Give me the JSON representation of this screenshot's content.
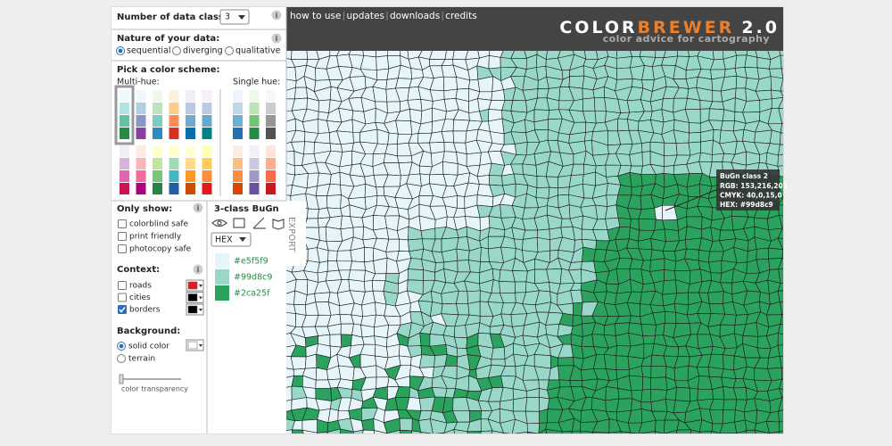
{
  "info_icon": "i",
  "panel": {
    "classes": {
      "label": "Number of data classes:",
      "value": "3"
    },
    "nature": {
      "label": "Nature of your data:",
      "options": [
        "sequential",
        "diverging",
        "qualitative"
      ],
      "selected": 0
    },
    "scheme": {
      "label": "Pick a color scheme:",
      "multi": "Multi-hue:",
      "single": "Single hue:",
      "multi_ramps": [
        [
          "#edf8fb",
          "#b2e2e2",
          "#66c2a4",
          "#238b45"
        ],
        [
          "#edf8fb",
          "#b3cde3",
          "#8c96c6",
          "#88419d"
        ],
        [
          "#f0f9e8",
          "#bae4bc",
          "#7bccc4",
          "#2b8cbe"
        ],
        [
          "#fef0d9",
          "#fdcc8a",
          "#fc8d59",
          "#d7301f"
        ],
        [
          "#f1eef6",
          "#bdc9e1",
          "#74a9cf",
          "#0570b0"
        ],
        [
          "#f6eff7",
          "#bdc9e1",
          "#67a9cf",
          "#02818a"
        ],
        [
          "#f1eef6",
          "#d7b5d8",
          "#df65b0",
          "#ce1256"
        ],
        [
          "#feebe2",
          "#fbb4b9",
          "#f768a1",
          "#ae017e"
        ],
        [
          "#ffffcc",
          "#c2e699",
          "#78c679",
          "#238443"
        ],
        [
          "#ffffcc",
          "#a1dab4",
          "#41b6c4",
          "#225ea8"
        ],
        [
          "#ffffd4",
          "#fed98e",
          "#fe9929",
          "#cc4c02"
        ],
        [
          "#ffffb2",
          "#fecc5c",
          "#fd8d3c",
          "#e31a1c"
        ]
      ],
      "single_ramps": [
        [
          "#eff3ff",
          "#bdd7e7",
          "#6baed6",
          "#2171b5"
        ],
        [
          "#edf8e9",
          "#bae4b3",
          "#74c476",
          "#238b45"
        ],
        [
          "#f7f7f7",
          "#cccccc",
          "#969696",
          "#525252"
        ],
        [
          "#feedde",
          "#fdbe85",
          "#fd8d3c",
          "#d94701"
        ],
        [
          "#f2f0f7",
          "#cbc9e2",
          "#9e9ac8",
          "#6a51a3"
        ],
        [
          "#fee5d9",
          "#fcae91",
          "#fb6a4a",
          "#cb181d"
        ]
      ],
      "selected": 0
    },
    "only_show": {
      "label": "Only show:",
      "options": [
        "colorblind safe",
        "print friendly",
        "photocopy safe"
      ]
    },
    "context": {
      "label": "Context:",
      "options": [
        "roads",
        "cities",
        "borders"
      ],
      "checked": [
        false,
        false,
        true
      ],
      "colors": [
        "#e41a1c",
        "#000000",
        "#000000"
      ]
    },
    "background": {
      "label": "Background:",
      "options": [
        "solid color",
        "terrain"
      ],
      "selected": 0,
      "color": "#ffffff",
      "slider": "color transparency"
    }
  },
  "legend": {
    "title": "3-class BuGn",
    "format": "HEX",
    "export": "EXPORT",
    "colors": [
      "#e5f5f9",
      "#99d8c9",
      "#2ca25f"
    ]
  },
  "nav": [
    "how to use",
    "updates",
    "downloads",
    "credits"
  ],
  "logo": {
    "brand1": "COLOR",
    "brand2": "BREWER",
    "version": "2.0",
    "tagline": "color advice for cartography"
  },
  "tooltip": {
    "title": "BuGn class 2",
    "lines": [
      "RGB: 153,216,201",
      "CMYK: 40,0,15,0",
      "HEX: #99d8c9"
    ]
  }
}
